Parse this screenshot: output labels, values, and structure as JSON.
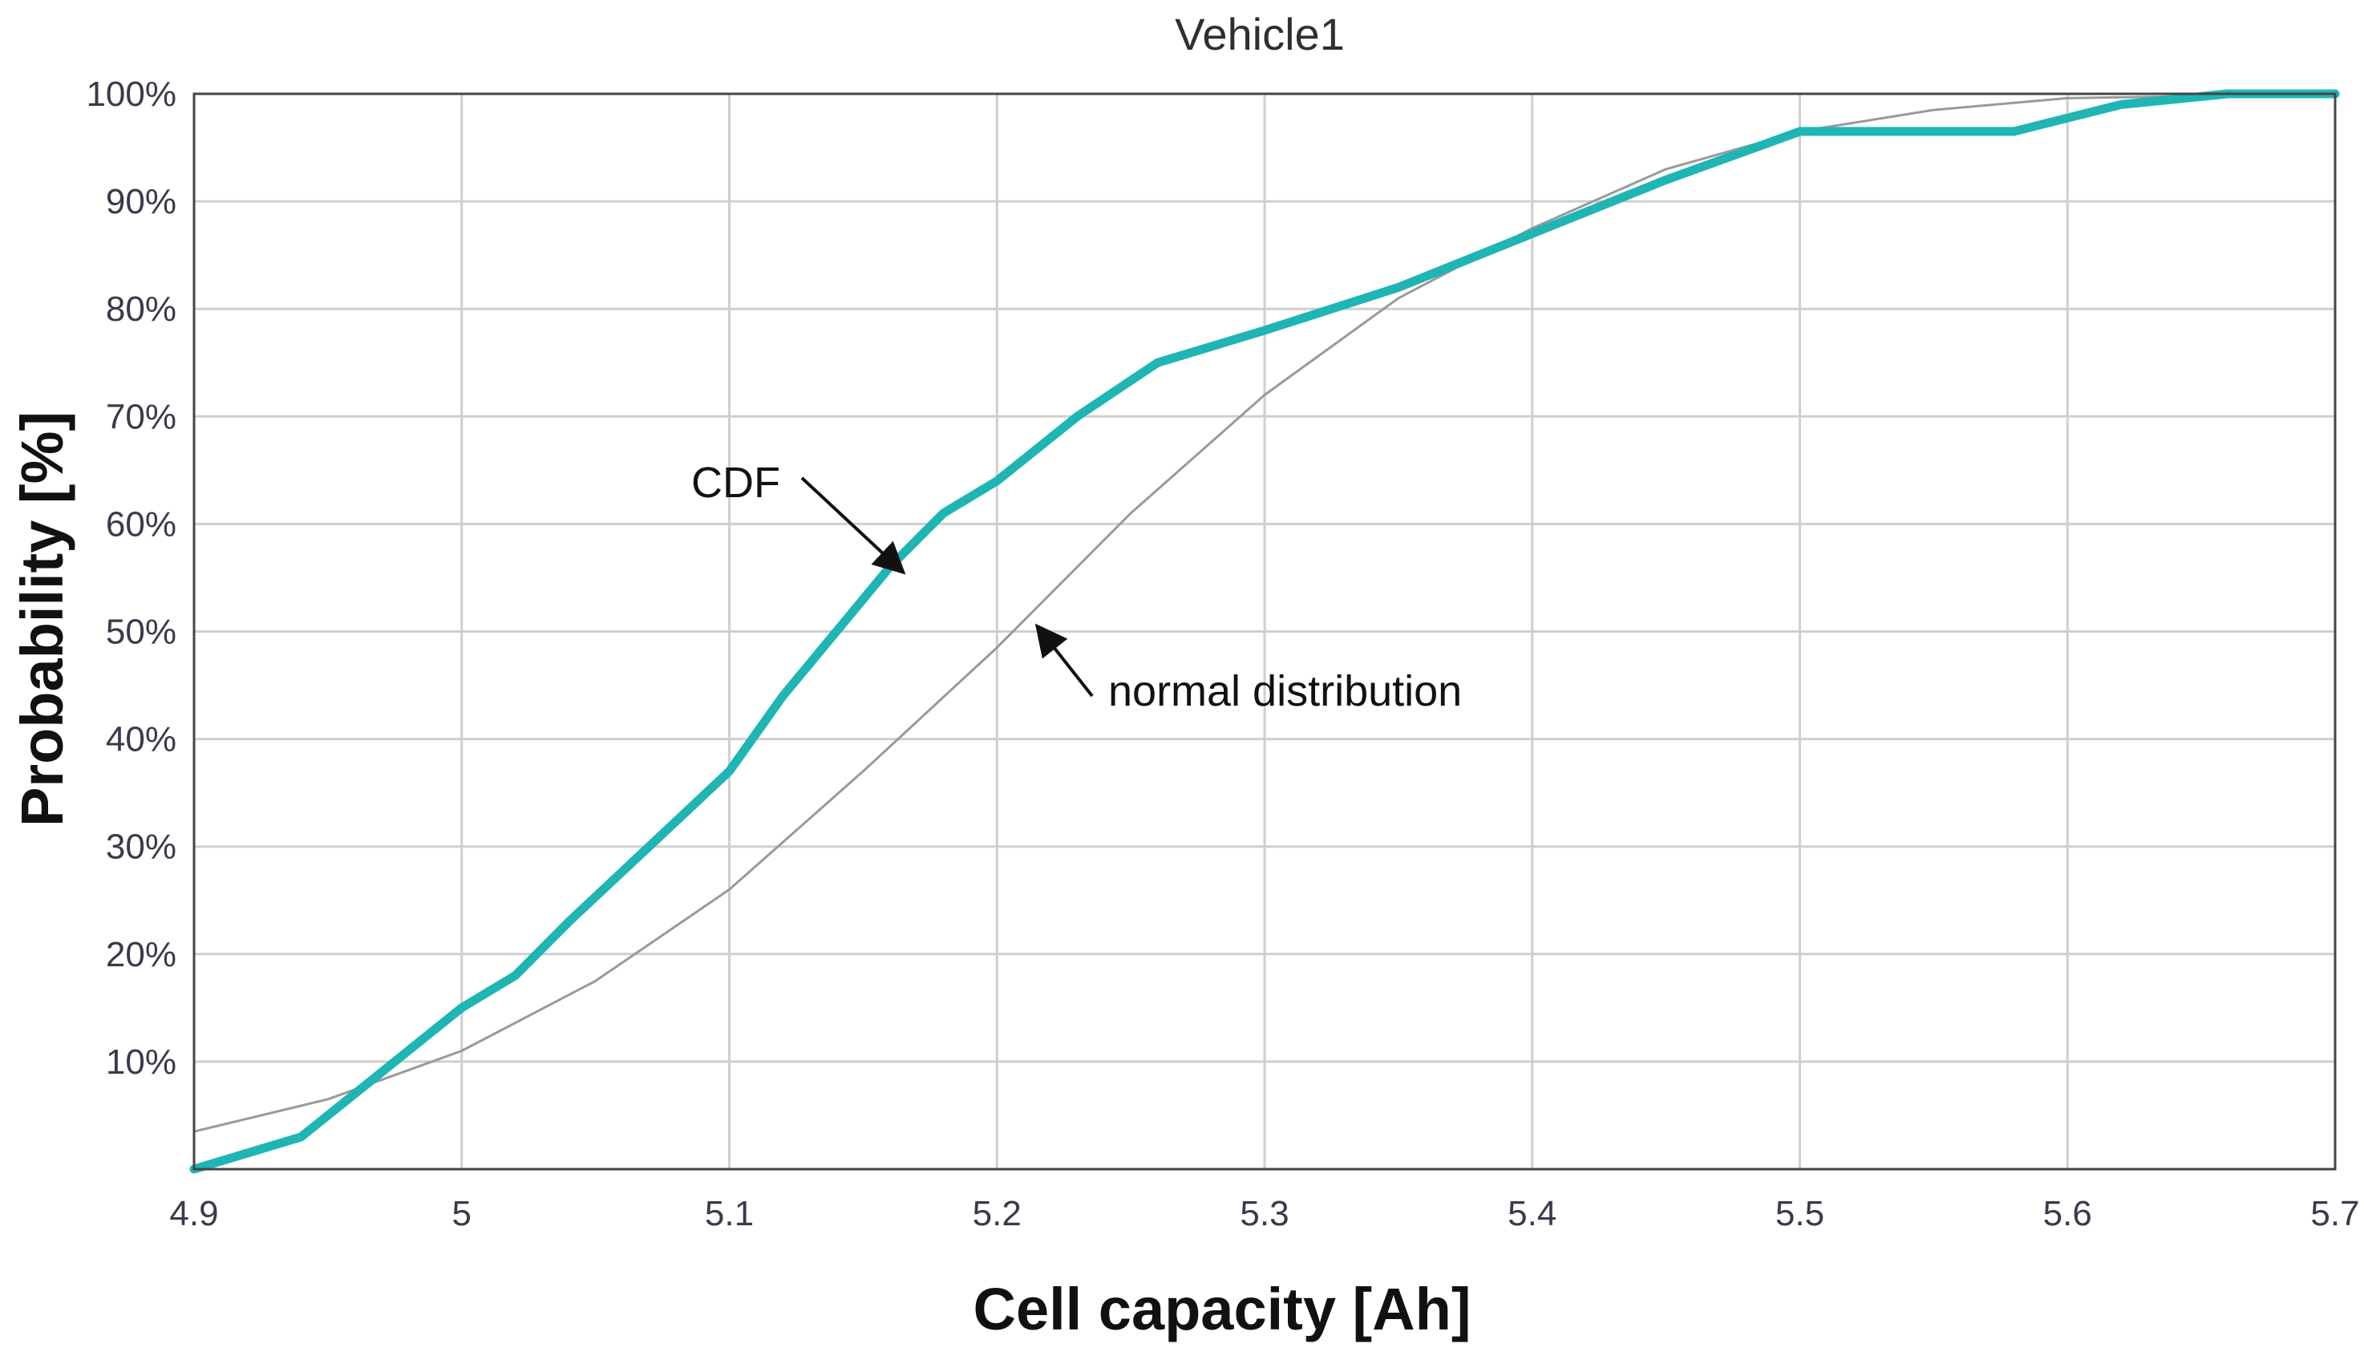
{
  "chart_data": {
    "type": "line",
    "title": "Vehicle1",
    "xlabel": "Cell capacity [Ah]",
    "ylabel": "Probability [%]",
    "xlim": [
      4.9,
      5.7
    ],
    "ylim": [
      0,
      100
    ],
    "x_ticks": [
      4.9,
      5.0,
      5.1,
      5.2,
      5.3,
      5.4,
      5.5,
      5.6,
      5.7
    ],
    "x_tick_labels": [
      "4.9",
      "5",
      "5.1",
      "5.2",
      "5.3",
      "5.4",
      "5.5",
      "5.6",
      "5.7"
    ],
    "y_ticks": [
      10,
      20,
      30,
      40,
      50,
      60,
      70,
      80,
      90,
      100
    ],
    "y_tick_labels": [
      "10%",
      "20%",
      "30%",
      "40%",
      "50%",
      "60%",
      "70%",
      "80%",
      "90%",
      "100%"
    ],
    "grid": true,
    "series": [
      {
        "name": "CDF",
        "color": "#1fb5b5",
        "x": [
          4.9,
          4.94,
          4.97,
          5.0,
          5.02,
          5.04,
          5.07,
          5.1,
          5.12,
          5.14,
          5.16,
          5.18,
          5.2,
          5.23,
          5.26,
          5.3,
          5.35,
          5.4,
          5.45,
          5.5,
          5.58,
          5.62,
          5.66,
          5.7
        ],
        "y": [
          0,
          3,
          9,
          15,
          18,
          23,
          30,
          37,
          44,
          50,
          56,
          61,
          64,
          70,
          75,
          78,
          82,
          87,
          92,
          96.5,
          96.5,
          99,
          100,
          100
        ]
      },
      {
        "name": "normal distribution",
        "color": "#9a9a9a",
        "x": [
          4.9,
          4.95,
          5.0,
          5.05,
          5.1,
          5.15,
          5.2,
          5.25,
          5.3,
          5.35,
          5.4,
          5.45,
          5.5,
          5.55,
          5.6,
          5.7
        ],
        "y": [
          3.5,
          6.5,
          11,
          17.5,
          26,
          37,
          48.5,
          61,
          72,
          81,
          87.5,
          93,
          96.5,
          98.5,
          99.6,
          100
        ]
      }
    ],
    "annotations": [
      {
        "text": "CDF",
        "target_series": "CDF",
        "point": [
          5.165,
          55.5
        ]
      },
      {
        "text": "normal distribution",
        "target_series": "normal distribution",
        "point": [
          5.215,
          50.5
        ]
      }
    ]
  }
}
